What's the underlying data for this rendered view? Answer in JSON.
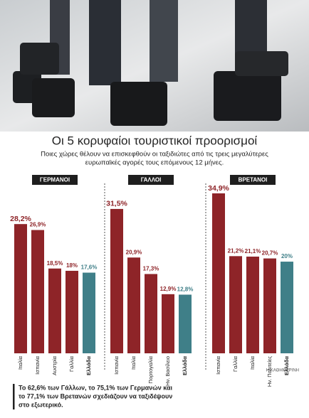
{
  "header": {
    "title": "Οι 5 κορυφαίοι τουριστικοί προορισμοί",
    "subtitle": [
      "Ποιες χώρες θέλουν να επισκεφθούν οι ταξιδιώτες από τις τρεις μεγαλύτερες",
      "ευρωπαϊκές αγορές τους επόμενους 12 μήνες."
    ]
  },
  "chart_data": [
    {
      "type": "bar",
      "title": "ΓΕΡΜΑΝΟΙ",
      "categories": [
        "Ιταλία",
        "Ισπανία",
        "Αυστρία",
        "Γαλλία",
        "Ελλάδα"
      ],
      "values": [
        28.2,
        26.9,
        18.5,
        18,
        17.6
      ],
      "value_labels": [
        "28,2%",
        "26,9%",
        "18,5%",
        "18%",
        "17,6%"
      ],
      "colors": [
        "#8e2428",
        "#8e2428",
        "#8e2428",
        "#8e2428",
        "#3f7f88"
      ]
    },
    {
      "type": "bar",
      "title": "ΓΑΛΛΟΙ",
      "categories": [
        "Ισπανία",
        "Ιταλία",
        "Πορτογαλία",
        "Ην. Βασίλειο",
        "Ελλάδα"
      ],
      "values": [
        31.5,
        20.9,
        17.3,
        12.9,
        12.8
      ],
      "value_labels": [
        "31,5%",
        "20,9%",
        "17,3%",
        "12,9%",
        "12,8%"
      ],
      "colors": [
        "#8e2428",
        "#8e2428",
        "#8e2428",
        "#8e2428",
        "#3f7f88"
      ]
    },
    {
      "type": "bar",
      "title": "ΒΡΕΤΑΝΟΙ",
      "categories": [
        "Ισπανία",
        "Γαλλία",
        "Ιταλία",
        "Ην. Πολιτείες",
        "Ελλάδα"
      ],
      "values": [
        34.9,
        21.2,
        21.1,
        20.7,
        20
      ],
      "value_labels": [
        "34,9%",
        "21,2%",
        "21,1%",
        "20,7%",
        "20%"
      ],
      "colors": [
        "#8e2428",
        "#8e2428",
        "#8e2428",
        "#8e2428",
        "#3f7f88"
      ]
    }
  ],
  "source": "Η ΚΑΘΗΜΕΡΙΝΗ",
  "footnote": [
    "Το 62,6% των Γάλλων, το 75,1% των Γερμανών και",
    "το 77,1% των Βρετανών σχεδιάζουν να ταξιδέψουν",
    "στο εξωτερικό."
  ]
}
